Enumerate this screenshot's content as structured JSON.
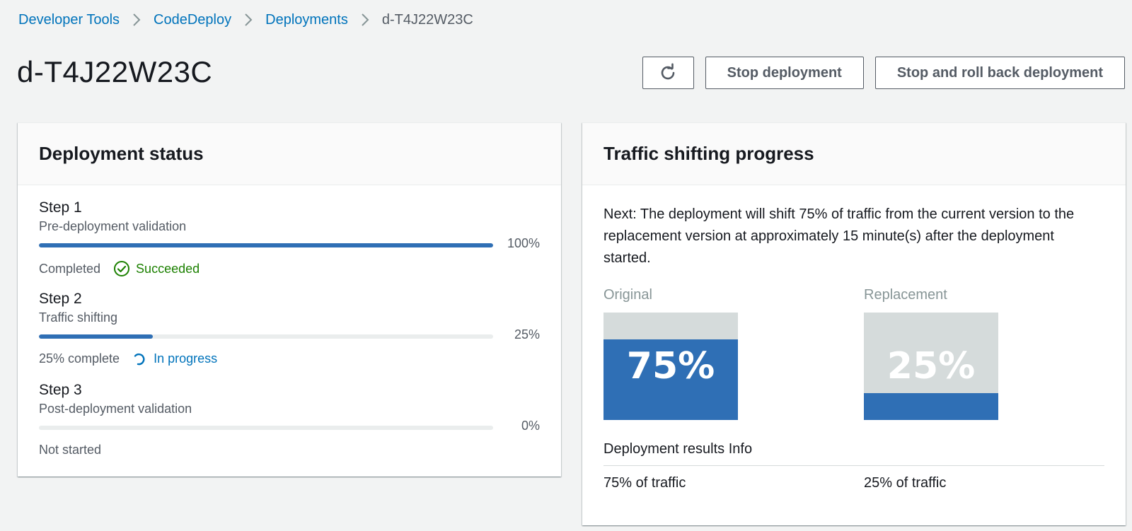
{
  "breadcrumb": [
    {
      "label": "Developer Tools"
    },
    {
      "label": "CodeDeploy"
    },
    {
      "label": "Deployments"
    },
    {
      "label": "d-T4J22W23C"
    }
  ],
  "header": {
    "title": "d-T4J22W23C",
    "refresh_icon": "refresh-icon",
    "stop_label": "Stop deployment",
    "rollback_label": "Stop and roll back deployment"
  },
  "status_panel": {
    "title": "Deployment status",
    "steps": [
      {
        "title": "Step 1",
        "subtitle": "Pre-deployment validation",
        "progress": 100,
        "percent_label": "100%",
        "status_text": "Completed",
        "badge": "Succeeded",
        "badge_icon": "check-circle-icon"
      },
      {
        "title": "Step 2",
        "subtitle": "Traffic shifting",
        "progress": 25,
        "percent_label": "25%",
        "status_text": "25% complete",
        "badge": "In progress",
        "badge_icon": "spinner-icon"
      },
      {
        "title": "Step 3",
        "subtitle": "Post-deployment validation",
        "progress": 0,
        "percent_label": "0%",
        "status_text": "Not started"
      }
    ]
  },
  "traffic_panel": {
    "title": "Traffic shifting progress",
    "next_text": "Next: The deployment will shift 75% of traffic from the current version to the replacement version at approximately 15 minute(s) after the deployment started.",
    "original": {
      "label": "Original",
      "percent": 75,
      "percent_label": "75%",
      "result": "75% of traffic"
    },
    "replacement": {
      "label": "Replacement",
      "percent": 25,
      "percent_label": "25%",
      "result": "25% of traffic"
    },
    "results_title": "Deployment results Info"
  },
  "colors": {
    "accent": "#2f6fb5",
    "link": "#0073bb",
    "success": "#1d8102",
    "track": "#eaeded",
    "gauge_bg": "#d5dbdb"
  }
}
